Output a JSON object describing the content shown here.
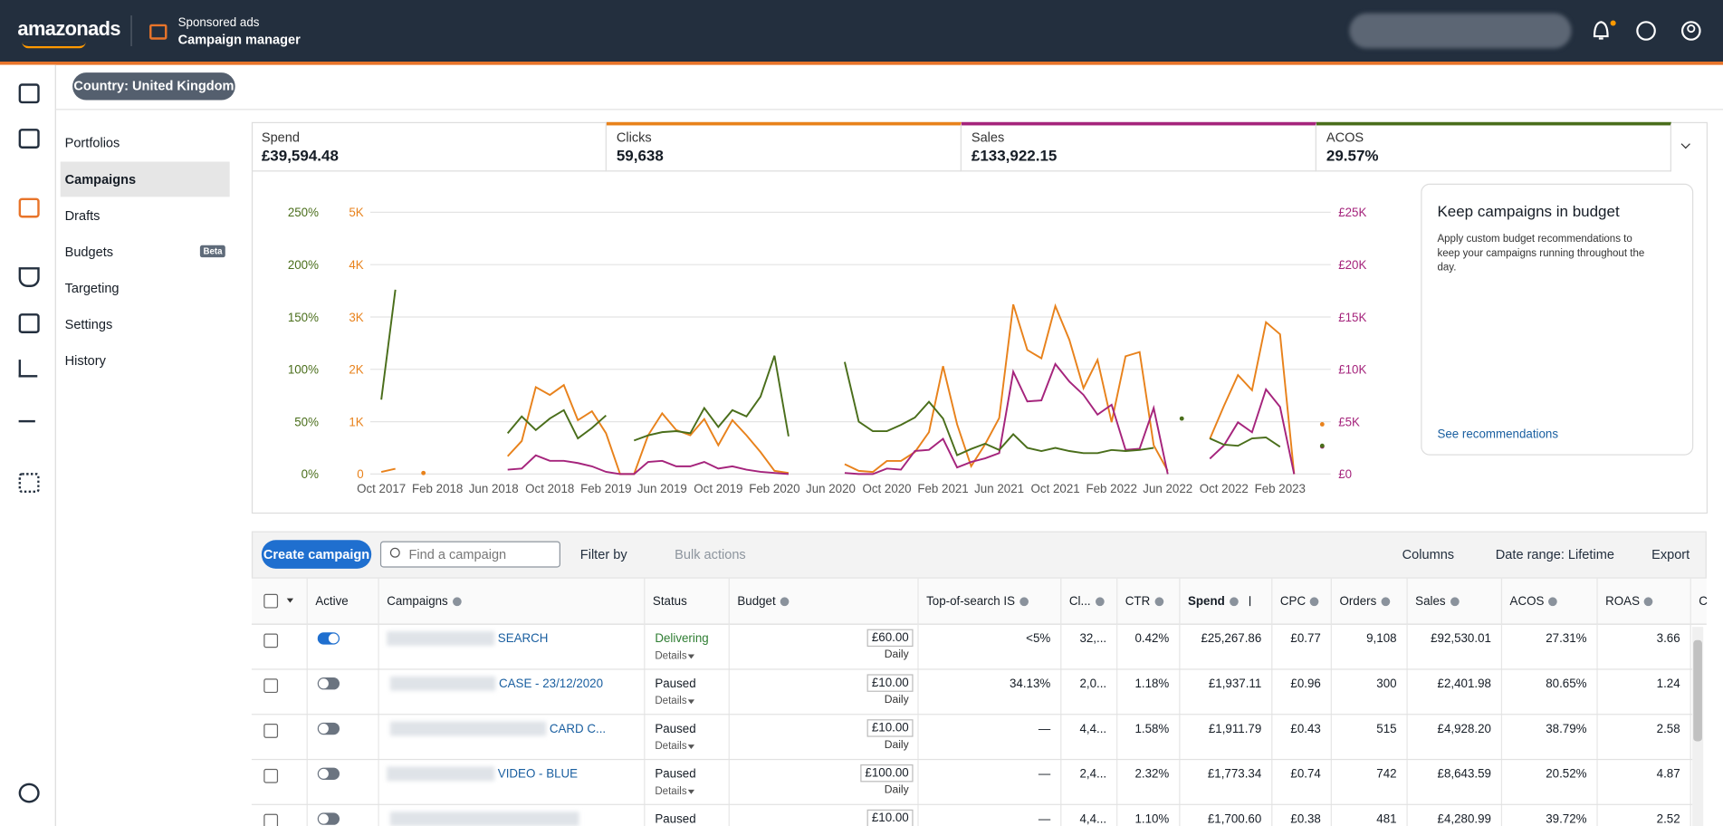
{
  "header": {
    "brand": "amazonads",
    "product_line": "Sponsored ads",
    "product": "Campaign manager"
  },
  "country_filter": "Country: United Kingdom",
  "nav": {
    "items": [
      {
        "label": "Portfolios"
      },
      {
        "label": "Campaigns",
        "selected": true
      },
      {
        "label": "Drafts"
      },
      {
        "label": "Budgets",
        "badge": "Beta"
      },
      {
        "label": "Targeting"
      },
      {
        "label": "Settings"
      },
      {
        "label": "History"
      }
    ]
  },
  "metrics": [
    {
      "label": "Spend",
      "value": "£39,594.48"
    },
    {
      "value": "59,638"
    },
    {
      "value": "£133,922.15"
    },
    {
      "value": "29.57%"
    }
  ],
  "chart": {
    "type": "line",
    "grid": true,
    "categories": [
      "Oct 2017",
      null,
      null,
      null,
      "Feb 2018",
      null,
      null,
      null,
      "Jun 2018",
      null,
      null,
      null,
      "Oct 2018",
      null,
      null,
      null,
      "Feb 2019",
      null,
      null,
      null,
      "Jun 2019",
      null,
      null,
      null,
      "Oct 2019",
      null,
      null,
      null,
      "Feb 2020",
      null,
      null,
      null,
      "Jun 2020",
      null,
      null,
      null,
      "Oct 2020",
      null,
      null,
      null,
      "Feb 2021",
      null,
      null,
      null,
      "Jun 2021",
      null,
      null,
      null,
      "Oct 2021",
      null,
      null,
      null,
      "Feb 2022",
      null,
      null,
      null,
      "Jun 2022",
      null,
      null,
      null,
      "Oct 2022",
      null,
      null,
      null,
      "Feb 2023",
      null,
      null,
      null
    ],
    "axes": {
      "acos": {
        "lim": [
          0,
          250
        ],
        "ticks": [
          {
            "value": 0,
            "label": "0%"
          },
          {
            "value": 50,
            "label": "50%"
          },
          {
            "value": 100,
            "label": "100%"
          },
          {
            "value": 150,
            "label": "150%"
          },
          {
            "value": 200,
            "label": "200%"
          },
          {
            "value": 250,
            "label": "250%"
          }
        ]
      },
      "clicks": {
        "lim": [
          0,
          5000
        ],
        "ticks": [
          0,
          {
            "value": 1000,
            "label": "1K"
          },
          {
            "value": 2000,
            "label": "2K"
          },
          {
            "value": 3000,
            "label": "3K"
          },
          {
            "value": 4000,
            "label": "4K"
          },
          {
            "value": 5000,
            "label": "5K"
          }
        ]
      },
      "sales": {
        "lim": [
          0,
          25000
        ],
        "ticks": [
          {
            "value": 0,
            "label": "£0"
          },
          {
            "value": 5000,
            "label": "£5K"
          },
          {
            "value": 10000,
            "label": "£10K"
          },
          {
            "value": 15000,
            "label": "£15K"
          },
          {
            "value": 20000,
            "label": "£20K"
          },
          {
            "value": 25000,
            "label": "£25K"
          }
        ]
      }
    },
    "series": [
      {
        "name": "Clicks",
        "color": "#e8821c",
        "axis": "clicks",
        "values": [
          40,
          100,
          null,
          20,
          null,
          null,
          null,
          null,
          null,
          340,
          630,
          1660,
          1510,
          1700,
          1030,
          1200,
          780,
          0,
          0,
          740,
          1160,
          840,
          740,
          1050,
          550,
          1030,
          740,
          420,
          60,
          20,
          null,
          null,
          null,
          190,
          60,
          40,
          250,
          250,
          420,
          800,
          2060,
          950,
          150,
          570,
          1070,
          3240,
          2370,
          2210,
          3210,
          2560,
          1640,
          2180,
          990,
          2250,
          2330,
          550,
          60,
          null,
          null,
          670,
          1300,
          1890,
          1600,
          2900,
          2670,
          0,
          null,
          950
        ]
      },
      {
        "name": "Sales",
        "color": "#a5247c",
        "axis": "sales",
        "values": [
          null,
          null,
          null,
          null,
          null,
          null,
          null,
          null,
          null,
          420,
          530,
          1790,
          1260,
          1260,
          1050,
          740,
          210,
          0,
          0,
          1160,
          1260,
          740,
          740,
          1160,
          530,
          740,
          420,
          210,
          110,
          0,
          null,
          null,
          null,
          110,
          0,
          0,
          530,
          420,
          2210,
          2310,
          3360,
          630,
          1160,
          1500,
          2000,
          9770,
          6930,
          7040,
          10500,
          8820,
          7560,
          5670,
          6620,
          2310,
          2420,
          6300,
          0,
          null,
          null,
          1470,
          2730,
          4940,
          3990,
          8090,
          6410,
          0,
          null,
          2630
        ]
      },
      {
        "name": "ACOS",
        "color": "#4a6e1b",
        "axis": "acos",
        "values": [
          71,
          176,
          null,
          null,
          null,
          null,
          null,
          null,
          null,
          39,
          55,
          42,
          53,
          61,
          34,
          44,
          56,
          null,
          32,
          37,
          40,
          41,
          39,
          63,
          45,
          61,
          55,
          74,
          113,
          36,
          null,
          null,
          null,
          107,
          50,
          41,
          41,
          47,
          54,
          69,
          53,
          18,
          24,
          29,
          23,
          38,
          25,
          22,
          25,
          22,
          20,
          20,
          23,
          22,
          23,
          25,
          null,
          53,
          null,
          34,
          28,
          27,
          34,
          35,
          26,
          null,
          null,
          27
        ]
      }
    ]
  },
  "recommendation": {
    "title": "Keep campaigns in budget",
    "body": "Apply custom budget recommendations to keep your campaigns running throughout the day.",
    "link": "See recommendations"
  },
  "toolbar": {
    "create": "Create campaign",
    "search_placeholder": "Find a campaign",
    "filter": "Filter by",
    "bulk": "Bulk actions",
    "columns": "Columns",
    "date_range": "Date range: Lifetime",
    "export": "Export"
  },
  "table": {
    "columns": [
      "Active",
      "Campaigns",
      "Status",
      "Budget",
      "Top-of-search IS",
      "Cl...",
      "CTR",
      "Spend",
      "CPC",
      "Orders",
      "Sales",
      "ACOS",
      "ROAS",
      "C"
    ],
    "sorted_column": 7,
    "rows": [
      {
        "active": true,
        "name": "SEARCH",
        "status": "Delivering",
        "details": "Details",
        "budget": "£60.00",
        "budget_period": "Daily",
        "top_of_search": "<5%",
        "clicks": "32,...",
        "ctr": "0.42%",
        "spend": "£25,267.86",
        "cpc": "£0.77",
        "orders": "9,108",
        "sales": "£92,530.01",
        "acos": "27.31%",
        "roas": "3.66"
      },
      {
        "active": false,
        "name": "CASE - 23/12/2020",
        "status": "Paused",
        "details": "Details",
        "budget": "£10.00",
        "budget_period": "Daily",
        "top_of_search": "34.13%",
        "clicks": "2,0...",
        "ctr": "1.18%",
        "spend": "£1,937.11",
        "cpc": "£0.96",
        "orders": "300",
        "sales": "£2,401.98",
        "acos": "80.65%",
        "roas": "1.24"
      },
      {
        "active": false,
        "name": "CARD C...",
        "status": "Paused",
        "details": "Details",
        "budget": "£10.00",
        "budget_period": "Daily",
        "top_of_search": "—",
        "clicks": "4,4...",
        "ctr": "1.58%",
        "spend": "£1,911.79",
        "cpc": "£0.43",
        "orders": "515",
        "sales": "£4,928.20",
        "acos": "38.79%",
        "roas": "2.58"
      },
      {
        "active": false,
        "name": "VIDEO - BLUE",
        "status": "Paused",
        "details": "Details",
        "budget": "£100.00",
        "budget_period": "Daily",
        "top_of_search": "—",
        "clicks": "2,4...",
        "ctr": "2.32%",
        "spend": "£1,773.34",
        "cpc": "£0.74",
        "orders": "742",
        "sales": "£8,643.59",
        "acos": "20.52%",
        "roas": "4.87"
      },
      {
        "active": false,
        "status": "Paused",
        "budget": "£10.00",
        "top_of_search": "—",
        "clicks": "4,4...",
        "ctr": "1.10%",
        "spend": "£1,700.60",
        "cpc": "£0.38",
        "orders": "481",
        "sales": "£4,280.99",
        "acos": "39.72%",
        "roas": "2.52"
      }
    ]
  }
}
